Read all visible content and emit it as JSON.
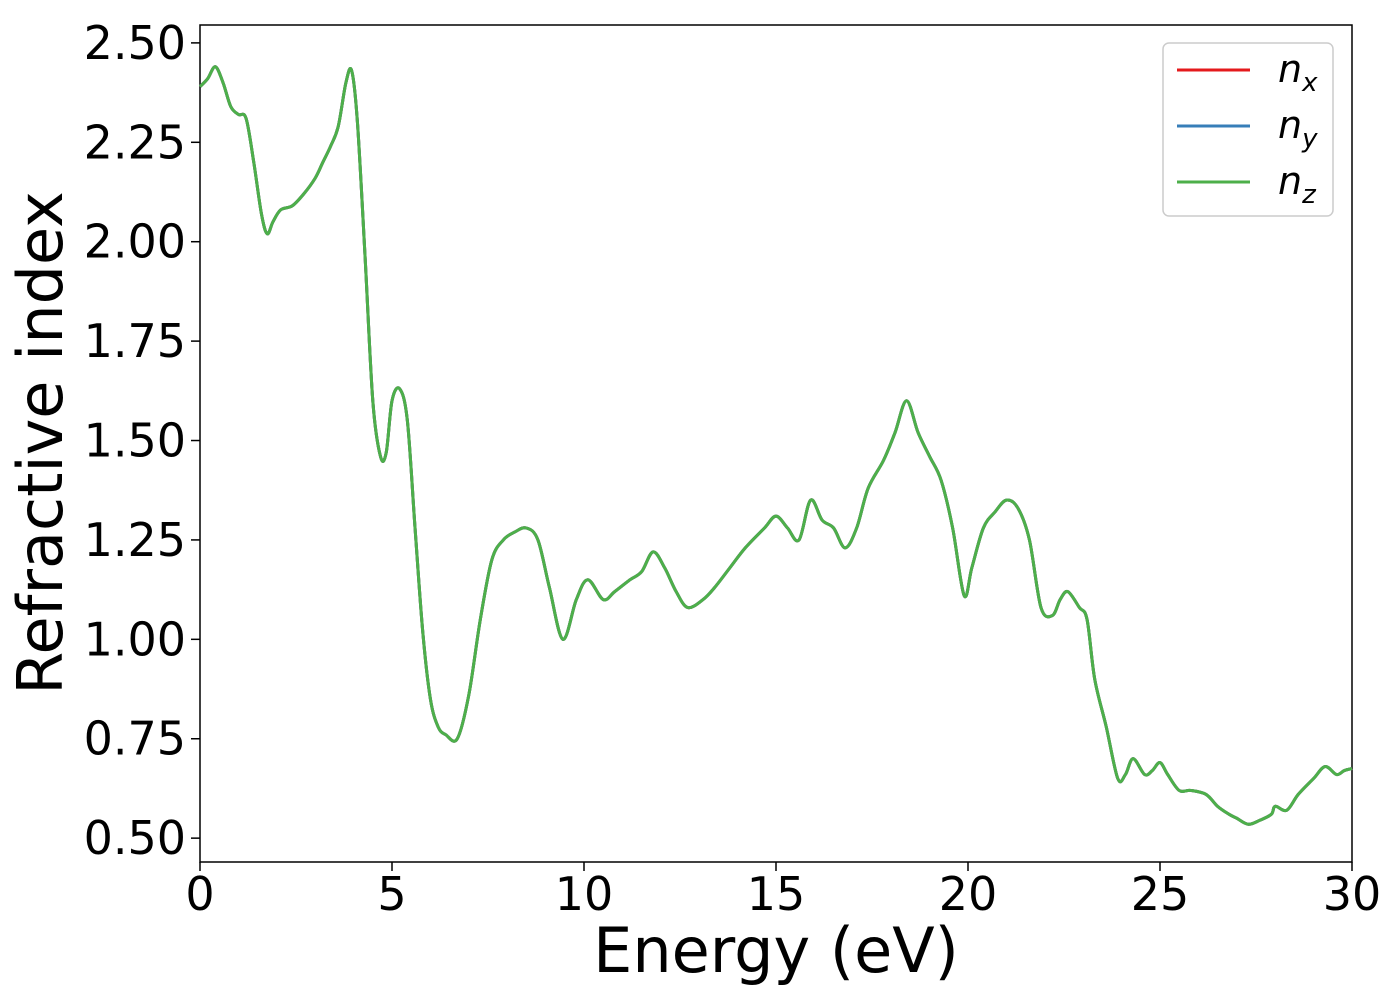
{
  "chart_data": {
    "type": "line",
    "xlabel": "Energy (eV)",
    "ylabel": "Refractive index",
    "xlim": [
      0,
      30
    ],
    "ylim": [
      0.44,
      2.545
    ],
    "xticks": [
      0,
      5,
      10,
      15,
      20,
      25,
      30
    ],
    "yticks": [
      0.5,
      0.75,
      1.0,
      1.25,
      1.5,
      1.75,
      2.0,
      2.25,
      2.5
    ],
    "xtick_labels": [
      "0",
      "5",
      "10",
      "15",
      "20",
      "25",
      "30"
    ],
    "ytick_labels": [
      "0.50",
      "0.75",
      "1.00",
      "1.25",
      "1.50",
      "1.75",
      "2.00",
      "2.25",
      "2.50"
    ],
    "grid": false,
    "legend": {
      "position": "top-right",
      "entries": [
        {
          "base": "n",
          "sub": "x",
          "color": "#e41a1c"
        },
        {
          "base": "n",
          "sub": "y",
          "color": "#377eb8"
        },
        {
          "base": "n",
          "sub": "z",
          "color": "#4daf4a"
        }
      ]
    },
    "x": [
      0,
      0.2,
      0.4,
      0.6,
      0.8,
      1.0,
      1.2,
      1.4,
      1.6,
      1.75,
      1.9,
      2.1,
      2.4,
      2.7,
      3.0,
      3.2,
      3.4,
      3.6,
      3.8,
      3.95,
      4.1,
      4.3,
      4.5,
      4.7,
      4.85,
      5.0,
      5.2,
      5.4,
      5.6,
      5.8,
      6.0,
      6.2,
      6.4,
      6.7,
      7.0,
      7.3,
      7.6,
      7.9,
      8.2,
      8.5,
      8.8,
      9.1,
      9.45,
      9.8,
      10.1,
      10.5,
      10.8,
      11.2,
      11.5,
      11.8,
      12.1,
      12.4,
      12.7,
      13.1,
      13.4,
      13.8,
      14.2,
      14.7,
      15.0,
      15.3,
      15.6,
      15.9,
      16.2,
      16.5,
      16.8,
      17.1,
      17.4,
      17.8,
      18.1,
      18.4,
      18.7,
      19.0,
      19.3,
      19.6,
      19.9,
      20.1,
      20.4,
      20.7,
      21.0,
      21.3,
      21.6,
      21.9,
      22.2,
      22.4,
      22.6,
      22.9,
      23.1,
      23.3,
      23.6,
      23.9,
      24.1,
      24.3,
      24.6,
      24.8,
      25.0,
      25.2,
      25.5,
      25.8,
      26.2,
      26.5,
      26.8,
      27.0,
      27.3,
      27.6,
      27.9,
      28.0,
      28.3,
      28.6,
      29.0,
      29.3,
      29.6,
      29.8,
      30.0
    ],
    "series": [
      {
        "name": "n_x",
        "color": "#e41a1c",
        "values": [
          2.39,
          2.41,
          2.44,
          2.4,
          2.34,
          2.32,
          2.31,
          2.2,
          2.07,
          2.02,
          2.05,
          2.08,
          2.09,
          2.12,
          2.16,
          2.2,
          2.24,
          2.29,
          2.4,
          2.43,
          2.3,
          1.96,
          1.6,
          1.46,
          1.47,
          1.6,
          1.63,
          1.55,
          1.28,
          1.02,
          0.85,
          0.78,
          0.76,
          0.75,
          0.86,
          1.05,
          1.2,
          1.25,
          1.27,
          1.28,
          1.25,
          1.13,
          1.0,
          1.1,
          1.15,
          1.1,
          1.12,
          1.15,
          1.17,
          1.22,
          1.18,
          1.12,
          1.08,
          1.1,
          1.13,
          1.18,
          1.23,
          1.28,
          1.31,
          1.28,
          1.25,
          1.35,
          1.3,
          1.28,
          1.23,
          1.28,
          1.38,
          1.45,
          1.52,
          1.6,
          1.52,
          1.46,
          1.4,
          1.28,
          1.11,
          1.18,
          1.28,
          1.32,
          1.35,
          1.33,
          1.25,
          1.08,
          1.06,
          1.1,
          1.12,
          1.08,
          1.05,
          0.9,
          0.78,
          0.65,
          0.66,
          0.7,
          0.66,
          0.67,
          0.69,
          0.66,
          0.62,
          0.62,
          0.61,
          0.58,
          0.56,
          0.55,
          0.535,
          0.545,
          0.56,
          0.58,
          0.57,
          0.61,
          0.65,
          0.68,
          0.66,
          0.67,
          0.675
        ]
      },
      {
        "name": "n_y",
        "color": "#377eb8",
        "values": [
          2.39,
          2.41,
          2.44,
          2.4,
          2.34,
          2.32,
          2.31,
          2.2,
          2.07,
          2.02,
          2.05,
          2.08,
          2.09,
          2.12,
          2.16,
          2.2,
          2.24,
          2.29,
          2.4,
          2.43,
          2.3,
          1.96,
          1.6,
          1.46,
          1.47,
          1.6,
          1.63,
          1.55,
          1.28,
          1.02,
          0.85,
          0.78,
          0.76,
          0.75,
          0.86,
          1.05,
          1.2,
          1.25,
          1.27,
          1.28,
          1.25,
          1.13,
          1.0,
          1.1,
          1.15,
          1.1,
          1.12,
          1.15,
          1.17,
          1.22,
          1.18,
          1.12,
          1.08,
          1.1,
          1.13,
          1.18,
          1.23,
          1.28,
          1.31,
          1.28,
          1.25,
          1.35,
          1.3,
          1.28,
          1.23,
          1.28,
          1.38,
          1.45,
          1.52,
          1.6,
          1.52,
          1.46,
          1.4,
          1.28,
          1.11,
          1.18,
          1.28,
          1.32,
          1.35,
          1.33,
          1.25,
          1.08,
          1.06,
          1.1,
          1.12,
          1.08,
          1.05,
          0.9,
          0.78,
          0.65,
          0.66,
          0.7,
          0.66,
          0.67,
          0.69,
          0.66,
          0.62,
          0.62,
          0.61,
          0.58,
          0.56,
          0.55,
          0.535,
          0.545,
          0.56,
          0.58,
          0.57,
          0.61,
          0.65,
          0.68,
          0.66,
          0.67,
          0.675
        ]
      },
      {
        "name": "n_z",
        "color": "#4daf4a",
        "values": [
          2.39,
          2.41,
          2.44,
          2.4,
          2.34,
          2.32,
          2.31,
          2.2,
          2.07,
          2.02,
          2.05,
          2.08,
          2.09,
          2.12,
          2.16,
          2.2,
          2.24,
          2.29,
          2.4,
          2.43,
          2.3,
          1.96,
          1.6,
          1.46,
          1.47,
          1.6,
          1.63,
          1.55,
          1.28,
          1.02,
          0.85,
          0.78,
          0.76,
          0.75,
          0.86,
          1.05,
          1.2,
          1.25,
          1.27,
          1.28,
          1.25,
          1.13,
          1.0,
          1.1,
          1.15,
          1.1,
          1.12,
          1.15,
          1.17,
          1.22,
          1.18,
          1.12,
          1.08,
          1.1,
          1.13,
          1.18,
          1.23,
          1.28,
          1.31,
          1.28,
          1.25,
          1.35,
          1.3,
          1.28,
          1.23,
          1.28,
          1.38,
          1.45,
          1.52,
          1.6,
          1.52,
          1.46,
          1.4,
          1.28,
          1.11,
          1.18,
          1.28,
          1.32,
          1.35,
          1.33,
          1.25,
          1.08,
          1.06,
          1.1,
          1.12,
          1.08,
          1.05,
          0.9,
          0.78,
          0.65,
          0.66,
          0.7,
          0.66,
          0.67,
          0.69,
          0.66,
          0.62,
          0.62,
          0.61,
          0.58,
          0.56,
          0.55,
          0.535,
          0.545,
          0.56,
          0.58,
          0.57,
          0.61,
          0.65,
          0.68,
          0.66,
          0.67,
          0.675
        ]
      }
    ]
  }
}
